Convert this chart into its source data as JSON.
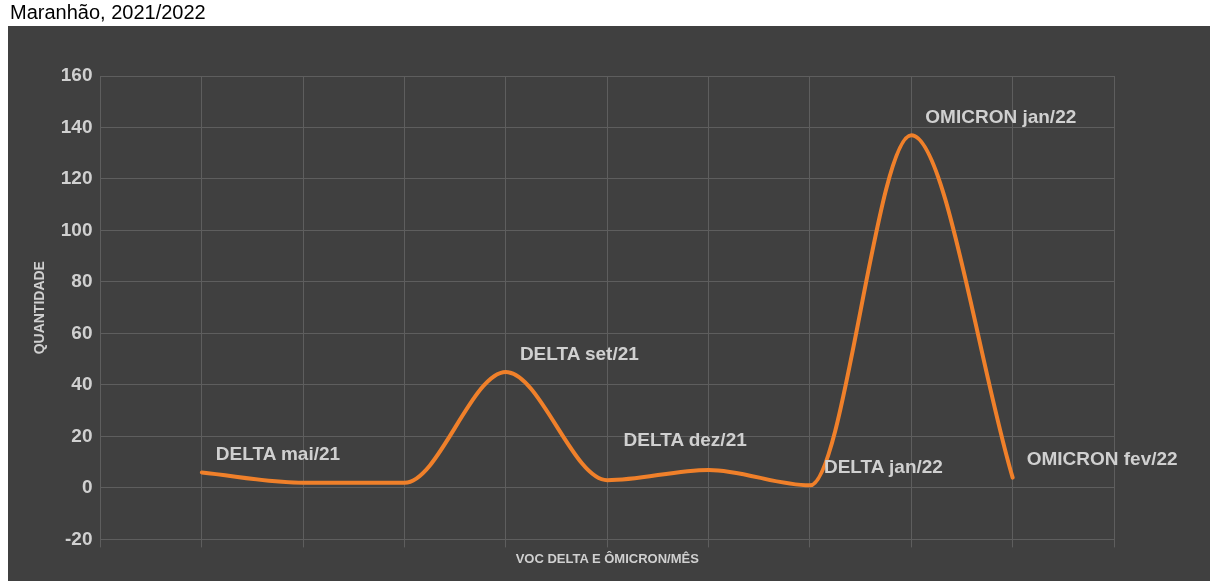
{
  "chart_data": {
    "type": "line",
    "title": "Maranhão, 2021/2022",
    "xlabel": "VOC DELTA E ÔMICRON/MÊS",
    "ylabel": "QUANTIDADE",
    "categories": [
      null,
      null,
      null,
      null,
      null,
      null,
      null,
      null,
      null,
      null,
      null
    ],
    "series": [
      {
        "color": "#f0802a",
        "values": [
          null,
          6,
          2,
          2,
          45,
          3,
          7,
          1,
          137,
          4,
          null
        ]
      }
    ],
    "annotations": [
      "DELTA mai/21",
      "DELTA set/21",
      "DELTA dez/21",
      "DELTA jan/22",
      "OMICRON jan/22",
      "OMICRON fev/22"
    ],
    "ylim": [
      -20,
      160
    ],
    "yticks": [
      -20,
      0,
      20,
      40,
      60,
      80,
      100,
      120,
      140,
      160
    ],
    "grid": true,
    "legend": false,
    "marker": "none",
    "line_style": "solid"
  }
}
